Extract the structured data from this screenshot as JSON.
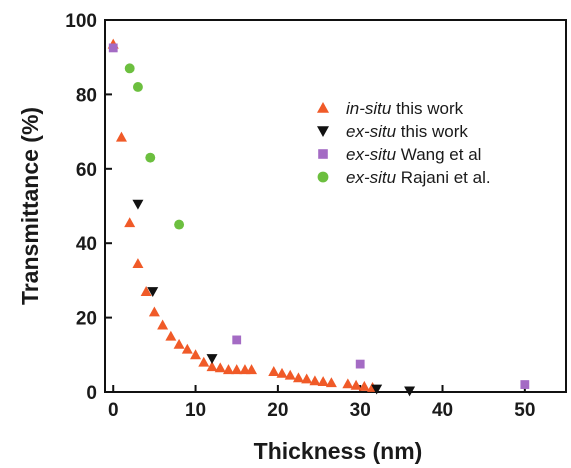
{
  "chart_data": {
    "type": "scatter",
    "xlabel": "Thickness (nm)",
    "ylabel": "Transmittance (%)",
    "xlim": [
      -1,
      55
    ],
    "ylim": [
      0,
      100
    ],
    "xticks": [
      0,
      10,
      20,
      30,
      40,
      50
    ],
    "yticks": [
      0,
      20,
      40,
      60,
      80,
      100
    ],
    "grid": false,
    "legend_position": "top-right",
    "series": [
      {
        "name_italic": "in-situ",
        "name_rest": " this work",
        "marker": "triangle-up",
        "color": "#f05a28",
        "x": [
          0,
          1,
          2,
          3,
          4,
          5,
          6,
          7,
          8,
          9,
          10,
          11,
          12,
          13,
          14,
          15,
          16,
          16.8,
          19.5,
          20.5,
          21.5,
          22.5,
          23.5,
          24.5,
          25.5,
          26.5,
          28.5,
          29.5,
          30.5,
          31.5
        ],
        "y": [
          93.5,
          68.5,
          45.5,
          34.5,
          27,
          21.5,
          18,
          15,
          12.8,
          11.5,
          10,
          8,
          6.8,
          6.5,
          6,
          6,
          6,
          6,
          5.5,
          5,
          4.5,
          3.8,
          3.5,
          3,
          2.8,
          2.5,
          2.2,
          1.8,
          1.5,
          1.2
        ]
      },
      {
        "name_italic": "ex-situ",
        "name_rest": " this work",
        "marker": "triangle-down",
        "color": "#111111",
        "x": [
          3,
          4.8,
          12,
          32,
          36
        ],
        "y": [
          50.5,
          27,
          9,
          0.8,
          0.3
        ]
      },
      {
        "name_italic": "ex-situ",
        "name_rest": " Wang et al",
        "marker": "square",
        "color": "#a46bc4",
        "x": [
          0,
          15,
          30,
          50
        ],
        "y": [
          92.5,
          14,
          7.5,
          2
        ]
      },
      {
        "name_italic": "ex-situ",
        "name_rest": " Rajani et al.",
        "marker": "circle",
        "color": "#6cbf3f",
        "x": [
          2,
          3,
          4.5,
          8
        ],
        "y": [
          87,
          82,
          63,
          45
        ]
      }
    ]
  }
}
